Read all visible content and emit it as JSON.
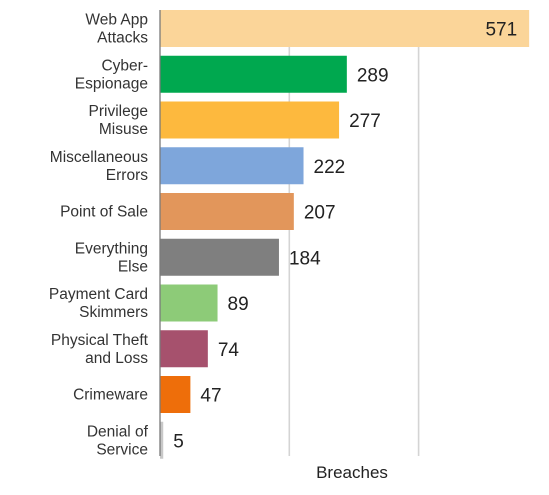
{
  "chart_data": {
    "type": "bar",
    "orientation": "horizontal",
    "categories": [
      "Web App Attacks",
      "Cyber-Espionage",
      "Privilege Misuse",
      "Miscellaneous Errors",
      "Point of Sale",
      "Everything Else",
      "Payment Card Skimmers",
      "Physical Theft and Loss",
      "Crimeware",
      "Denial of Service"
    ],
    "category_label_lines": [
      [
        "Web App",
        "Attacks"
      ],
      [
        "Cyber-",
        "Espionage"
      ],
      [
        "Privilege",
        "Misuse"
      ],
      [
        "Miscellaneous",
        "Errors"
      ],
      [
        "Point of Sale"
      ],
      [
        "Everything",
        "Else"
      ],
      [
        "Payment Card",
        "Skimmers"
      ],
      [
        "Physical Theft",
        "and Loss"
      ],
      [
        "Crimeware"
      ],
      [
        "Denial of",
        "Service"
      ]
    ],
    "values": [
      571,
      289,
      277,
      222,
      207,
      184,
      89,
      74,
      47,
      5
    ],
    "colors": [
      "#FBD599",
      "#00A84F",
      "#FDB93E",
      "#7EA6DB",
      "#E2965B",
      "#7F7F7F",
      "#8DCB78",
      "#A6516D",
      "#EE6E0A",
      "#C8C8C8"
    ],
    "xlabel": "Breaches",
    "ylabel": "",
    "title": "",
    "xlim": [
      0,
      600
    ],
    "gridlines_at": [
      200,
      400
    ],
    "grid": true,
    "legend": "none"
  }
}
